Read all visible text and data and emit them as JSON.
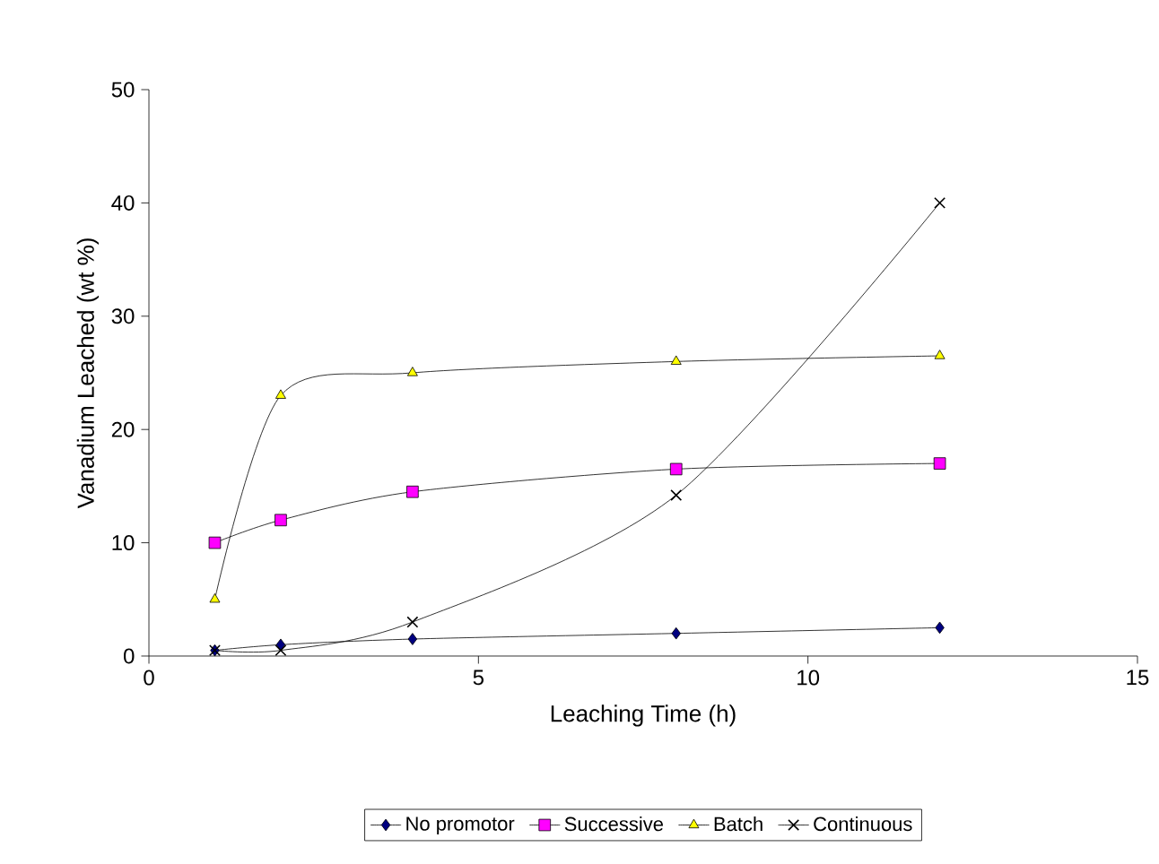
{
  "chart_data": {
    "type": "line",
    "xlabel": "Leaching  Time (h)",
    "ylabel": "Vanadium Leached (wt %)",
    "x": [
      1,
      2,
      4,
      8,
      12
    ],
    "xlim": [
      0,
      15
    ],
    "ylim": [
      0,
      50
    ],
    "xticks": [
      0,
      5,
      10,
      15
    ],
    "yticks": [
      0,
      10,
      20,
      30,
      40,
      50
    ],
    "grid": false,
    "legend": "bottom",
    "series": [
      {
        "name": "No promotor",
        "color": "#000080",
        "marker": "diamond",
        "values": [
          0.5,
          1,
          1.5,
          2,
          2.5
        ]
      },
      {
        "name": "Successive",
        "color": "#ff00ff",
        "marker": "square",
        "values": [
          10,
          12,
          14.5,
          16.5,
          17
        ]
      },
      {
        "name": "Batch",
        "color": "#ffff00",
        "marker": "triangle",
        "values": [
          5,
          23,
          25,
          26,
          26.5
        ]
      },
      {
        "name": "Continuous",
        "color": "#000000",
        "marker": "cross",
        "values": [
          0.5,
          0.5,
          3,
          14.2,
          40
        ]
      }
    ]
  }
}
